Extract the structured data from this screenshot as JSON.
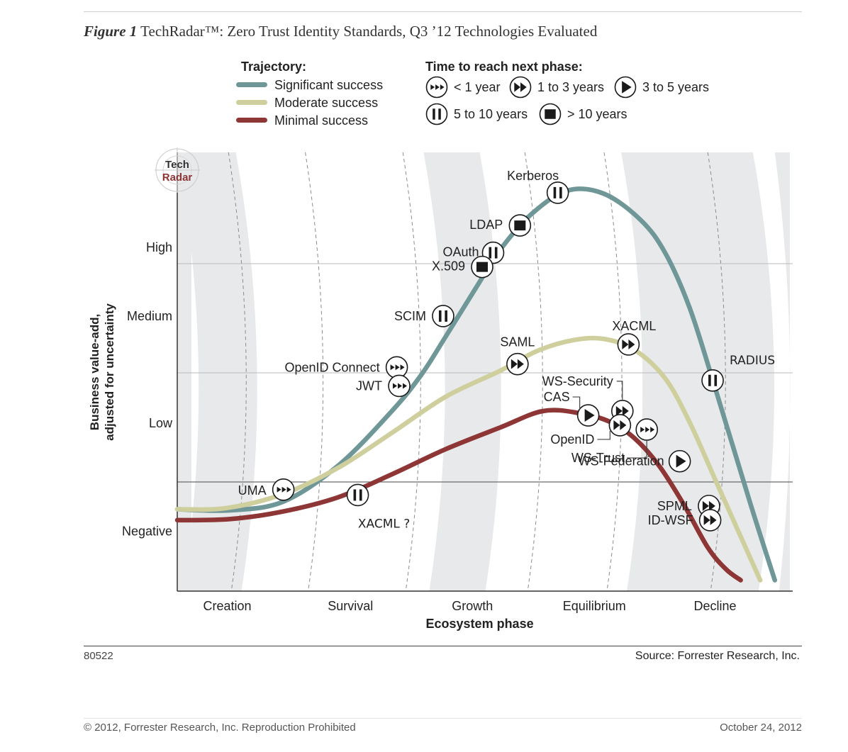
{
  "figure": {
    "label": "Figure 1",
    "title": "TechRadar™: Zero Trust Identity Standards, Q3 ’12 Technologies Evaluated"
  },
  "legend": {
    "trajectory_title": "Trajectory:",
    "trajectories": [
      {
        "label": "Significant success",
        "color": "#6f9798"
      },
      {
        "label": "Moderate success",
        "color": "#cfcf9e"
      },
      {
        "label": "Minimal success",
        "color": "#8e3535"
      }
    ],
    "time_title": "Time to reach next phase:",
    "times": [
      {
        "icon": "triple-arrow-icon",
        "label": "< 1 year"
      },
      {
        "icon": "double-arrow-icon",
        "label": "1 to 3 years"
      },
      {
        "icon": "play-icon",
        "label": "3 to 5 years"
      },
      {
        "icon": "pause-icon",
        "label": "5 to 10 years"
      },
      {
        "icon": "stop-icon",
        "label": "> 10 years"
      }
    ]
  },
  "chart_data": {
    "type": "line",
    "logo": [
      "Tech",
      "Radar"
    ],
    "xlabel": "Ecosystem phase",
    "ylabel_lines": [
      "Business value-add,",
      "adjusted for uncertainty"
    ],
    "x_categories": [
      "Creation",
      "Survival",
      "Growth",
      "Equilibrium",
      "Decline"
    ],
    "y_categories": [
      "High",
      "Medium",
      "Low",
      "Negative"
    ],
    "series": [
      {
        "key": "significant",
        "color": "#6f9798",
        "x": [
          0.0,
          0.43,
          0.87,
          1.32,
          1.76,
          2.0,
          2.2,
          2.45,
          2.65,
          2.9,
          3.2,
          3.5,
          3.8,
          4.0,
          4.2,
          4.4,
          4.7,
          4.9
        ],
        "y": [
          0.75,
          0.74,
          0.82,
          1.15,
          1.65,
          1.98,
          2.33,
          2.78,
          3.13,
          3.45,
          3.67,
          3.64,
          3.4,
          3.1,
          2.6,
          1.9,
          0.8,
          0.1
        ]
      },
      {
        "key": "moderate",
        "color": "#cfcf9e",
        "x": [
          0.0,
          0.4,
          0.87,
          1.32,
          1.76,
          2.2,
          2.65,
          2.95,
          3.25,
          3.5,
          3.75,
          4.0,
          4.2,
          4.4,
          4.6,
          4.78
        ],
        "y": [
          0.75,
          0.76,
          0.89,
          1.13,
          1.45,
          1.78,
          2.02,
          2.2,
          2.3,
          2.31,
          2.21,
          1.95,
          1.55,
          1.05,
          0.55,
          0.1
        ]
      },
      {
        "key": "minimal",
        "color": "#8e3535",
        "x": [
          0.0,
          0.43,
          0.87,
          1.32,
          1.76,
          2.2,
          2.65,
          3.0,
          3.3,
          3.55,
          3.75,
          3.95,
          4.15,
          4.35,
          4.5,
          4.62
        ],
        "y": [
          0.65,
          0.66,
          0.73,
          0.86,
          1.07,
          1.3,
          1.5,
          1.65,
          1.63,
          1.55,
          1.4,
          1.15,
          0.8,
          0.4,
          0.2,
          0.1
        ]
      }
    ],
    "technologies": [
      {
        "name": "Kerberos",
        "x": 3.12,
        "y": 3.65,
        "time": "pause"
      },
      {
        "name": "LDAP",
        "x": 2.81,
        "y": 3.35,
        "time": "stop"
      },
      {
        "name": "OAuth",
        "x": 2.59,
        "y": 3.1,
        "time": "pause"
      },
      {
        "name": "X.509",
        "x": 2.5,
        "y": 2.97,
        "time": "stop"
      },
      {
        "name": "SCIM",
        "x": 2.18,
        "y": 2.52,
        "time": "pause"
      },
      {
        "name": "OpenID Connect",
        "x": 1.8,
        "y": 2.05,
        "time": "lt1"
      },
      {
        "name": "JWT",
        "x": 1.82,
        "y": 1.88,
        "time": "lt1"
      },
      {
        "name": "UMA",
        "x": 0.87,
        "y": 0.93,
        "time": "lt1"
      },
      {
        "name": "SAML",
        "x": 2.79,
        "y": 2.08,
        "time": "y1to3"
      },
      {
        "name": "XACML",
        "x": 3.7,
        "y": 2.26,
        "time": "y1to3"
      },
      {
        "name": "RADIUS",
        "x": 4.39,
        "y": 1.93,
        "time": "pause"
      },
      {
        "name": "WS-Security",
        "x": 3.65,
        "y": 1.65,
        "time": "y1to3"
      },
      {
        "name": "CAS",
        "x": 3.37,
        "y": 1.61,
        "time": "play"
      },
      {
        "name": "OpenID",
        "x": 3.63,
        "y": 1.52,
        "time": "y1to3"
      },
      {
        "name": "WS-Trust",
        "x": 3.85,
        "y": 1.48,
        "time": "lt1"
      },
      {
        "name": "WS-Federation",
        "x": 4.12,
        "y": 1.19,
        "time": "play"
      },
      {
        "name": "SPML",
        "x": 4.36,
        "y": 0.78,
        "time": "y1to3"
      },
      {
        "name": "ID-WSF",
        "x": 4.37,
        "y": 0.65,
        "time": "y1to3"
      },
      {
        "name": "XACML ?",
        "x": 1.48,
        "y": 0.88,
        "time": "pause"
      }
    ]
  },
  "footer": {
    "figure_id": "80522",
    "source": "Source: Forrester Research, Inc.",
    "copyright": "© 2012, Forrester Research, Inc. Reproduction Prohibited",
    "date": "October 24, 2012"
  }
}
